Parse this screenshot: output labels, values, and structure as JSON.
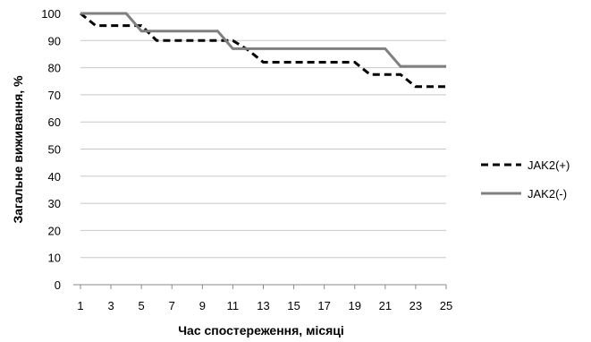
{
  "chart_data": {
    "type": "line",
    "xlabel": "Час спостереження, місяці",
    "ylabel": "Загальне виживання, %",
    "xlim": [
      1,
      25
    ],
    "ylim": [
      0,
      100
    ],
    "x_ticks": [
      1,
      3,
      5,
      7,
      9,
      11,
      13,
      15,
      17,
      19,
      21,
      23,
      25
    ],
    "y_ticks": [
      0,
      10,
      20,
      30,
      40,
      50,
      60,
      70,
      80,
      90,
      100
    ],
    "grid": "horizontal",
    "legend_position": "right",
    "series": [
      {
        "name": "JAK2(+)",
        "style": "dashed",
        "color": "#000000",
        "x": [
          1,
          2,
          3,
          4,
          5,
          6,
          7,
          8,
          9,
          10,
          11,
          12,
          13,
          14,
          15,
          16,
          17,
          18,
          19,
          20,
          21,
          22,
          23,
          24,
          25
        ],
        "values": [
          100,
          95.5,
          95.5,
          95.5,
          95.5,
          90,
          90,
          90,
          90,
          90,
          90,
          86.5,
          82,
          82,
          82,
          82,
          82,
          82,
          82,
          77.5,
          77.5,
          77.5,
          73,
          73,
          73
        ]
      },
      {
        "name": "JAK2(-)",
        "style": "solid",
        "color": "#808080",
        "x": [
          1,
          2,
          3,
          4,
          5,
          6,
          7,
          8,
          9,
          10,
          11,
          12,
          13,
          14,
          15,
          16,
          17,
          18,
          19,
          20,
          21,
          22,
          23,
          24,
          25
        ],
        "values": [
          100,
          100,
          100,
          100,
          93.5,
          93.5,
          93.5,
          93.5,
          93.5,
          93.5,
          87,
          87,
          87,
          87,
          87,
          87,
          87,
          87,
          87,
          87,
          87,
          80.5,
          80.5,
          80.5,
          80.5
        ]
      }
    ]
  }
}
